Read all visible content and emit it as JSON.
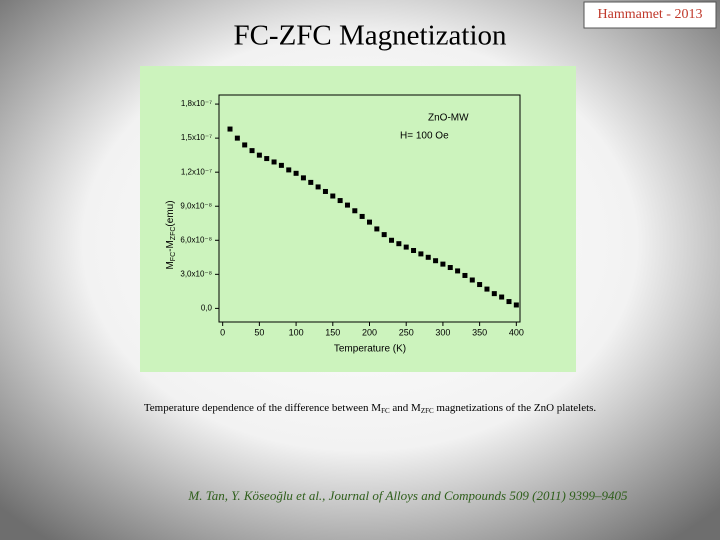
{
  "badge": "Hammamet - 2013",
  "chart_data": {
    "type": "scatter",
    "title": "FC-ZFC Magnetization",
    "annotations": [
      "ZnO-MW",
      "H= 100 Oe"
    ],
    "x_label": "Temperature (K)",
    "y_label": [
      "M",
      "FC",
      "-M",
      "ZFC",
      "(emu)"
    ],
    "xlim": [
      -5,
      405
    ],
    "xticks": [
      0,
      50,
      100,
      150,
      200,
      250,
      300,
      350,
      400
    ],
    "ylim": [
      -1.2e-08,
      1.88e-07
    ],
    "yticks": [
      {
        "value": 0,
        "label": "0,0"
      },
      {
        "value": 3e-08,
        "label": "3,0x10⁻⁸"
      },
      {
        "value": 6e-08,
        "label": "6,0x10⁻⁸"
      },
      {
        "value": 9e-08,
        "label": "9,0x10⁻⁸"
      },
      {
        "value": 1.2e-07,
        "label": "1,2x10⁻⁷"
      },
      {
        "value": 1.5e-07,
        "label": "1,5x10⁻⁷"
      },
      {
        "value": 1.8e-07,
        "label": "1,8x10⁻⁷"
      }
    ],
    "color": "#000000",
    "x": [
      10,
      20,
      30,
      40,
      50,
      60,
      70,
      80,
      90,
      100,
      110,
      120,
      130,
      140,
      150,
      160,
      170,
      180,
      190,
      200,
      210,
      220,
      230,
      240,
      250,
      260,
      270,
      280,
      290,
      300,
      310,
      320,
      330,
      340,
      350,
      360,
      370,
      380,
      390,
      400
    ],
    "values": [
      1.58e-07,
      1.5e-07,
      1.44e-07,
      1.39e-07,
      1.35e-07,
      1.32e-07,
      1.29e-07,
      1.26e-07,
      1.22e-07,
      1.19e-07,
      1.15e-07,
      1.11e-07,
      1.07e-07,
      1.03e-07,
      9.9e-08,
      9.5e-08,
      9.1e-08,
      8.6e-08,
      8.1e-08,
      7.6e-08,
      7e-08,
      6.5e-08,
      6e-08,
      5.7e-08,
      5.4e-08,
      5.1e-08,
      4.8e-08,
      4.5e-08,
      4.2e-08,
      3.9e-08,
      3.6e-08,
      3.3e-08,
      2.9e-08,
      2.5e-08,
      2.1e-08,
      1.7e-08,
      1.3e-08,
      1e-08,
      6e-09,
      3e-09
    ]
  },
  "caption": [
    "Temperature dependence of the difference between M",
    "FC",
    " and M",
    "ZFC",
    " magnetizations of the ZnO platelets."
  ],
  "citation": "M. Tan, Y. Köseoğlu et al., Journal of Alloys and Compounds 509 (2011) 9399–9405"
}
